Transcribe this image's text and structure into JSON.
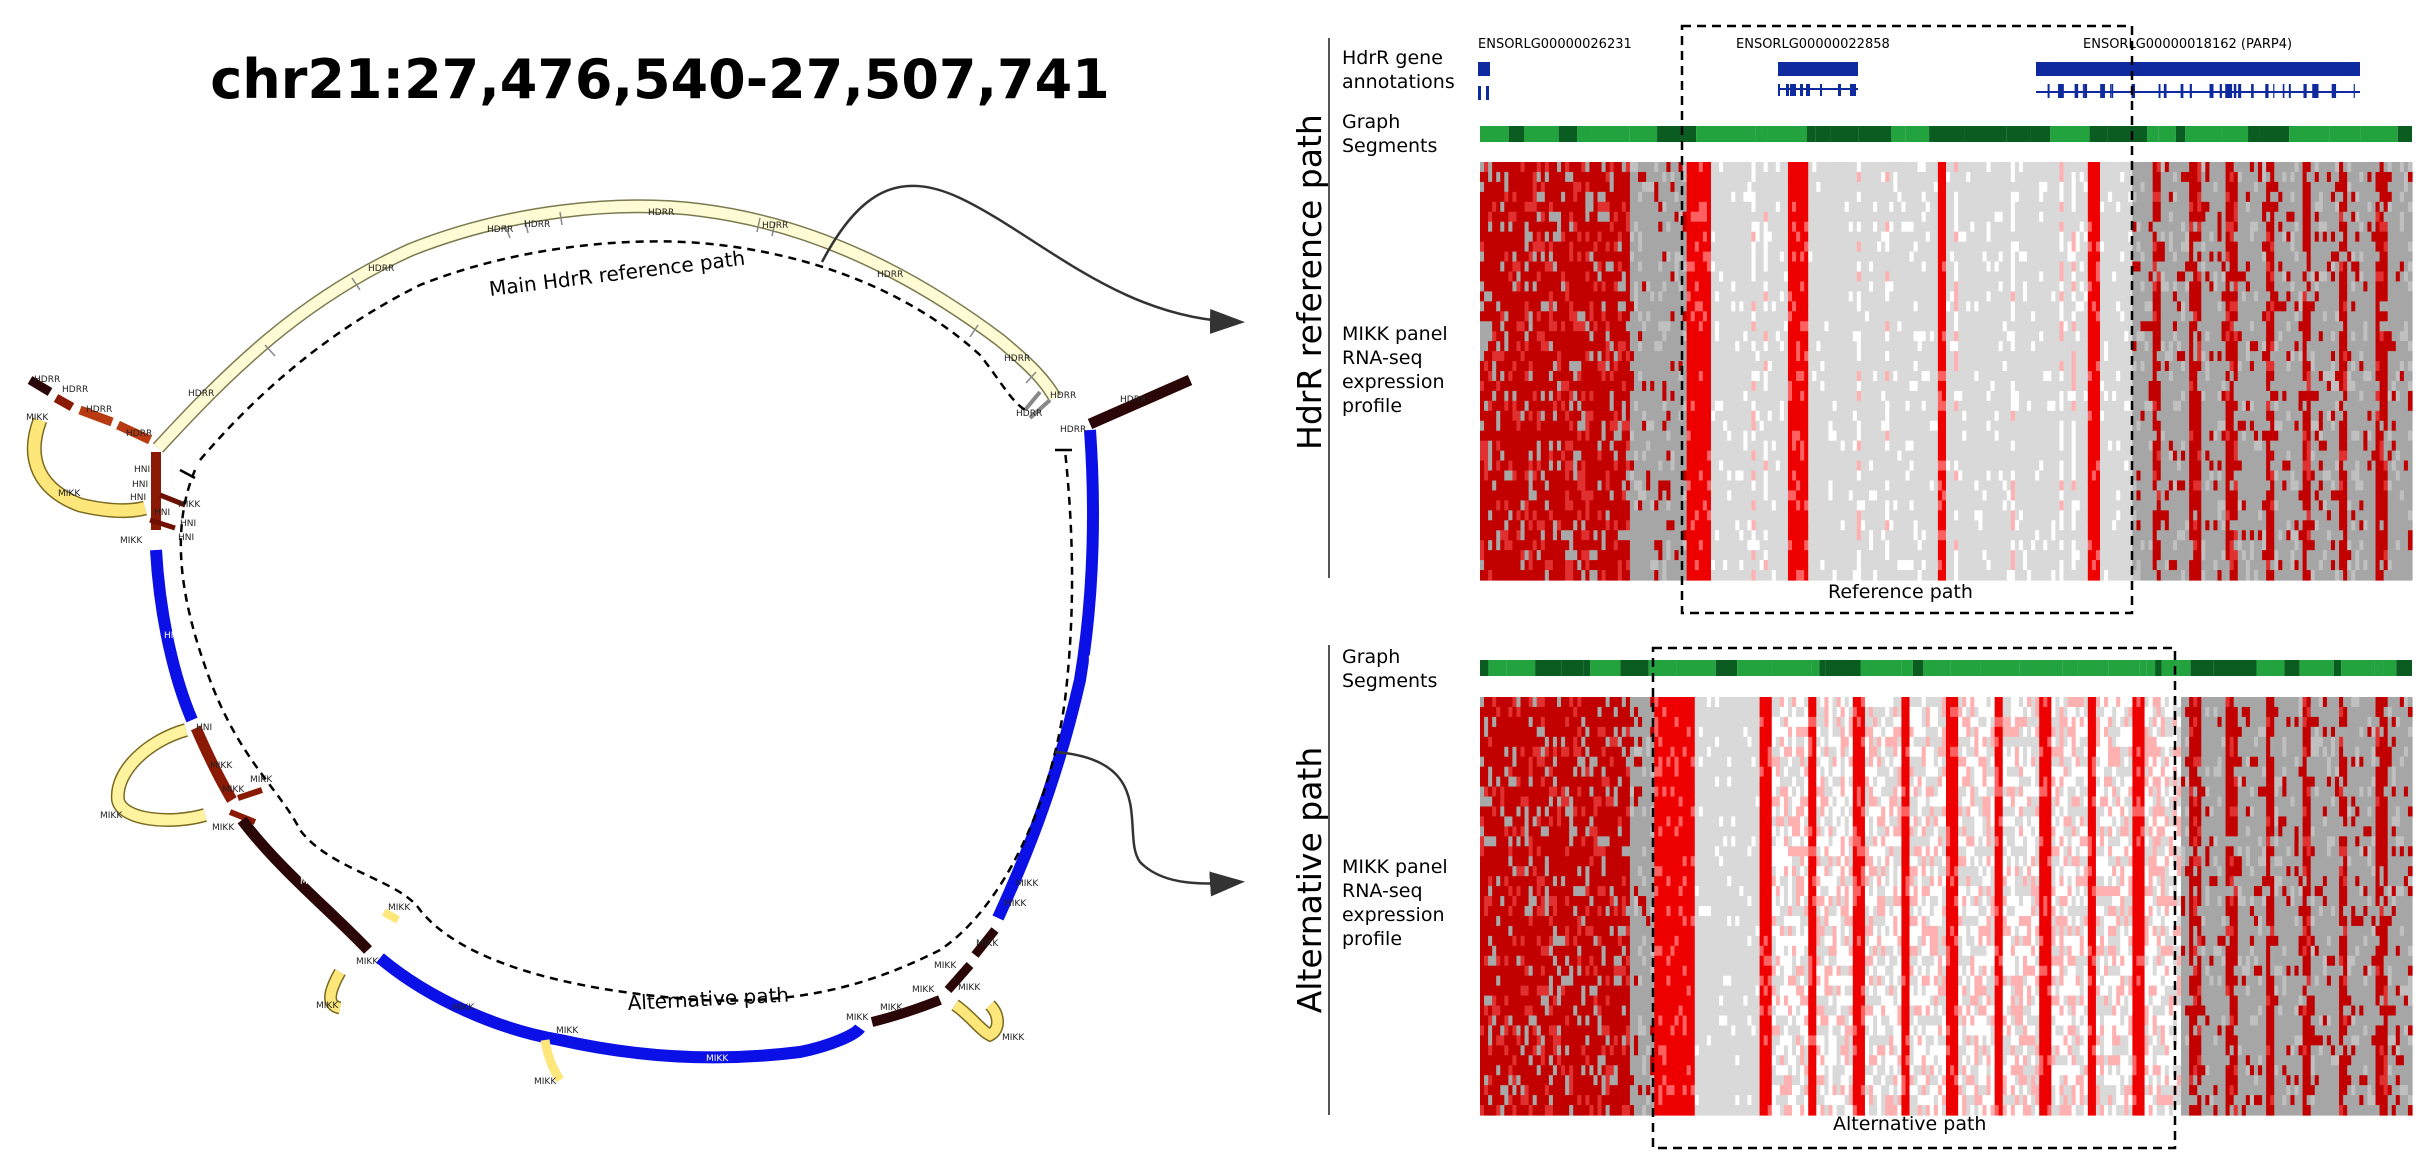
{
  "title": "chr21:27,476,540-27,507,741",
  "graph": {
    "ref_path_label": "Main HdrR reference path",
    "alt_path_label": "Alternative path",
    "segment_labels": {
      "hdrr": "HDRR",
      "hni": "HNI",
      "mikk": "MIKK",
      "hdrr_alt": "HDRR"
    },
    "colors": {
      "hdrr": "#fffbd4",
      "mikk_yellow": "#fde67a",
      "dark_red": "#8b1a05",
      "mid_red": "#b83a10",
      "very_dark": "#2a0606",
      "blue": "#0a10e6",
      "hni_red": "#6e0f02"
    }
  },
  "right": {
    "ref_section_title": "HdrR reference path",
    "alt_section_title": "Alternative path",
    "hdrr_gene_annotations_label": "HdrR gene\nannotations",
    "graph_segments_label": "Graph\nSegments",
    "rnaseq_label": "MIKK panel\nRNA-seq\nexpression\nprofile",
    "genes": [
      "ENSORLG00000026231",
      "ENSORLG00000022858",
      "ENSORLG00000018162 (PARP4)"
    ],
    "reference_path_box_label": "Reference path",
    "alternative_path_box_label": "Alternative path",
    "colors": {
      "gene_blue": "#0f2a9e",
      "seg_dark_green": "#0a5c21",
      "seg_light_green": "#22a33e",
      "heat_red": "#e00000",
      "heat_grey": "#d9d9d9"
    }
  }
}
